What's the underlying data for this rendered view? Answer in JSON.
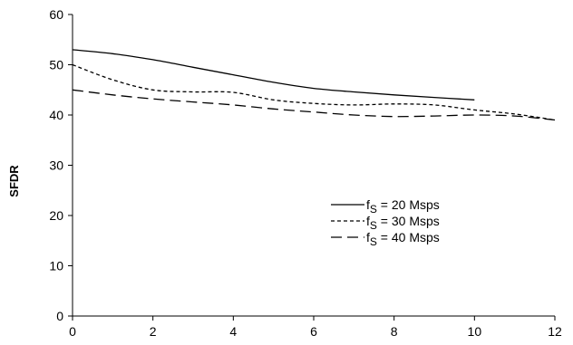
{
  "chart_data": {
    "type": "line",
    "title": "",
    "xlabel": "",
    "ylabel": "SFDR",
    "xlim": [
      0,
      12
    ],
    "ylim": [
      0,
      60
    ],
    "xticks": [
      0,
      2,
      4,
      6,
      8,
      10,
      12
    ],
    "yticks": [
      0,
      10,
      20,
      30,
      40,
      50,
      60
    ],
    "grid": false,
    "legend_position": "center-right",
    "series": [
      {
        "name": "fS = 20 Msps",
        "legend_main": "f",
        "legend_sub": "S",
        "legend_rest": " = 20 Msps",
        "dash": "solid",
        "points": [
          [
            0,
            53
          ],
          [
            1,
            52.2
          ],
          [
            2,
            51
          ],
          [
            3,
            49.5
          ],
          [
            4,
            48
          ],
          [
            5,
            46.5
          ],
          [
            6,
            45.3
          ],
          [
            7,
            44.6
          ],
          [
            8,
            44
          ],
          [
            9,
            43.5
          ],
          [
            10,
            43
          ]
        ]
      },
      {
        "name": "fS = 30 Msps",
        "legend_main": "f",
        "legend_sub": "S",
        "legend_rest": " = 30 Msps",
        "dash": "short",
        "points": [
          [
            0,
            50
          ],
          [
            1,
            47
          ],
          [
            2,
            45
          ],
          [
            3,
            44.6
          ],
          [
            4,
            44.5
          ],
          [
            5,
            43
          ],
          [
            6,
            42.3
          ],
          [
            7,
            42
          ],
          [
            8,
            42.2
          ],
          [
            9,
            42
          ],
          [
            10,
            41
          ],
          [
            11,
            40.2
          ],
          [
            12,
            39
          ]
        ]
      },
      {
        "name": "fS = 40 Msps",
        "legend_main": "f",
        "legend_sub": "S",
        "legend_rest": " = 40 Msps",
        "dash": "long",
        "points": [
          [
            0,
            45
          ],
          [
            1,
            44
          ],
          [
            2,
            43.2
          ],
          [
            3,
            42.6
          ],
          [
            4,
            42
          ],
          [
            5,
            41.2
          ],
          [
            6,
            40.6
          ],
          [
            7,
            40
          ],
          [
            8,
            39.7
          ],
          [
            9,
            39.8
          ],
          [
            10,
            40
          ],
          [
            11,
            39.8
          ],
          [
            12,
            39
          ]
        ]
      }
    ]
  }
}
